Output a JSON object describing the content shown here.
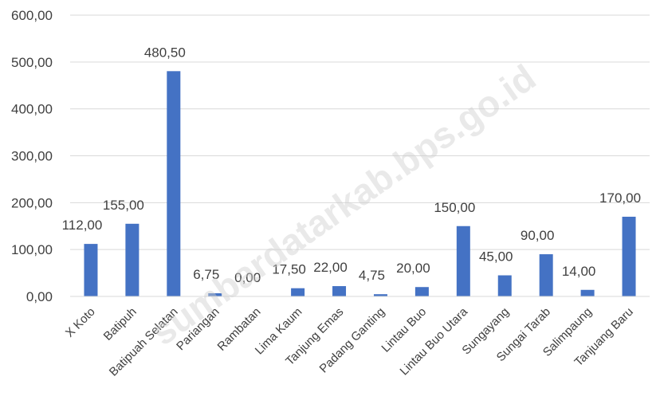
{
  "watermark": "sumbardatarkab.bps.go.id",
  "chart_data": {
    "type": "bar",
    "title": "",
    "xlabel": "",
    "ylabel": "",
    "ylim": [
      0,
      600
    ],
    "y_ticks": [
      "0,00",
      "100,00",
      "200,00",
      "300,00",
      "400,00",
      "500,00",
      "600,00"
    ],
    "grid": "horizontal",
    "bar_color": "#4472c4",
    "categories": [
      "X Koto",
      "Batipuh",
      "Batipuah Selatan",
      "Pariangan",
      "Rambatan",
      "Lima Kaum",
      "Tanjung Emas",
      "Padang Ganting",
      "Lintau Buo",
      "Lintau Buo Utara",
      "Sungayang",
      "Sungai Tarab",
      "Salimpaung",
      "Tanjuang Baru"
    ],
    "values": [
      112.0,
      155.0,
      480.5,
      6.75,
      0.0,
      17.5,
      22.0,
      4.75,
      20.0,
      150.0,
      45.0,
      90.0,
      14.0,
      170.0
    ],
    "data_labels": [
      "112,00",
      "155,00",
      "480,50",
      "6,75",
      "0,00",
      "17,50",
      "22,00",
      "4,75",
      "20,00",
      "150,00",
      "45,00",
      "90,00",
      "14,00",
      "170,00"
    ]
  }
}
